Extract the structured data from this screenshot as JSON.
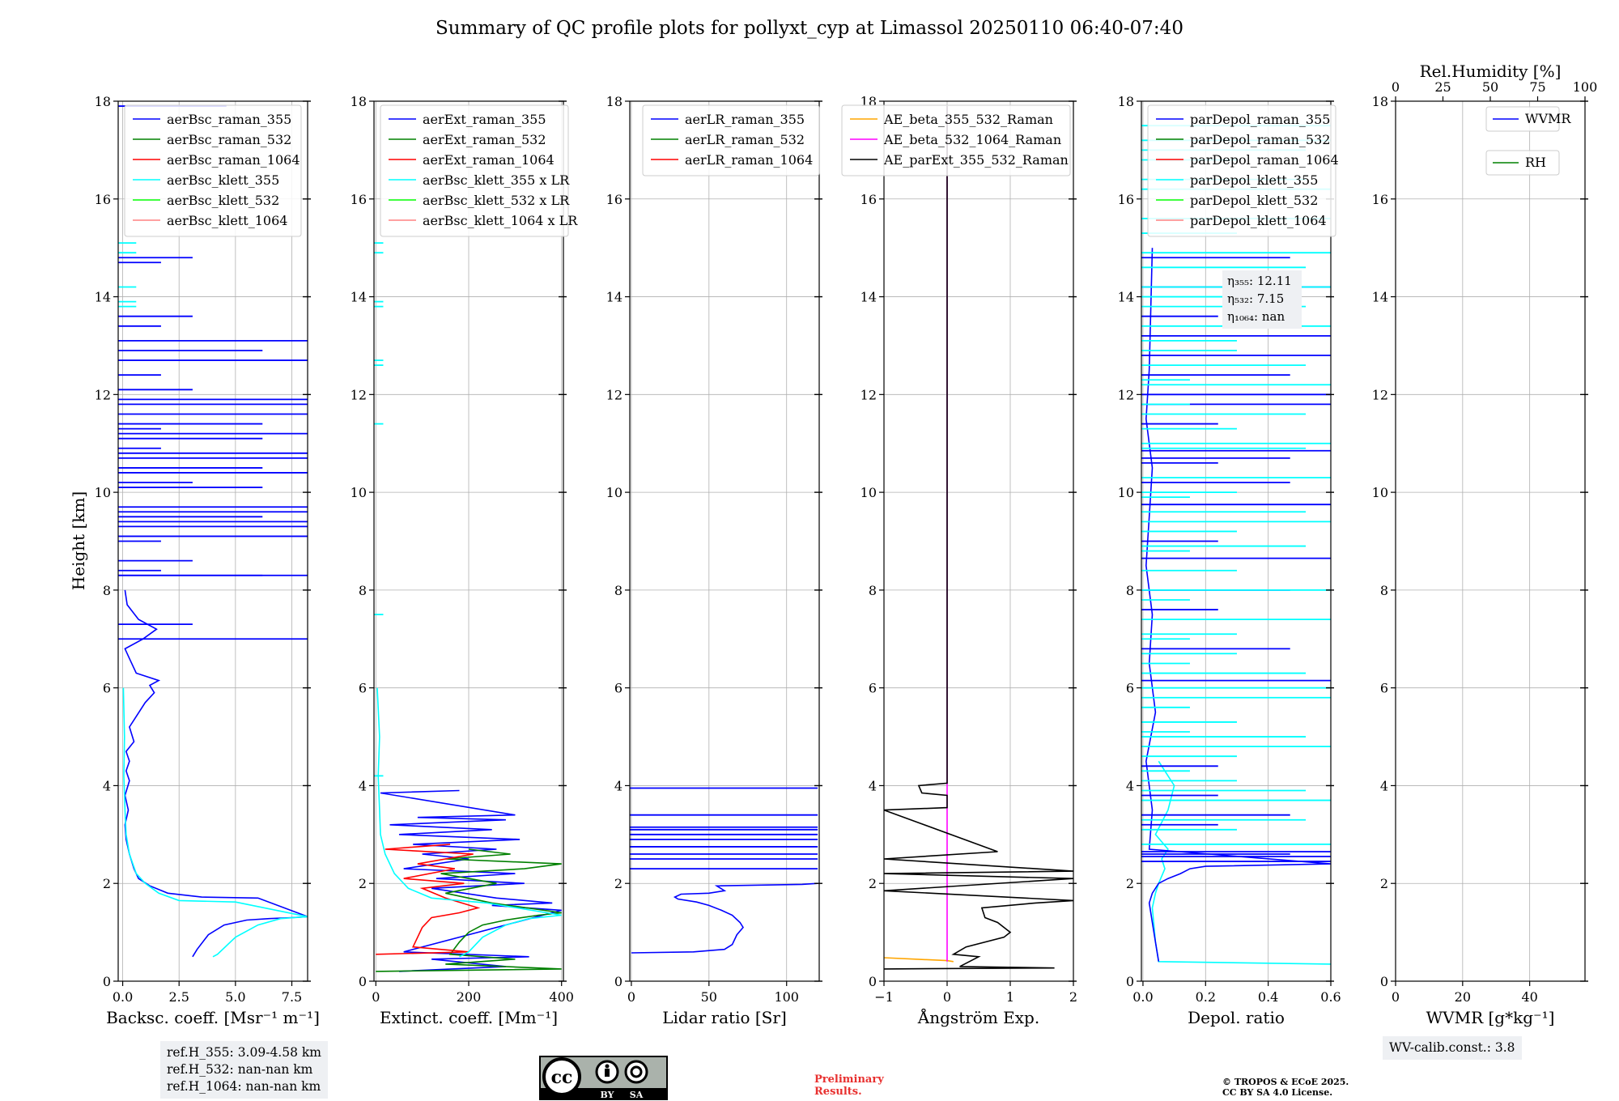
{
  "title": "Summary of QC profile plots for pollyxt_cyp at Limassol 20250110 06:40-07:40",
  "y_axis_label": "Height [km]",
  "colors": {
    "raman_355": "#0000ff",
    "raman_532": "#008000",
    "raman_1064": "#ff0000",
    "klett_355": "#00ffff",
    "klett_532": "#00ff00",
    "klett_1064": "#ff8080",
    "ae_beta_355_532": "#ffa500",
    "ae_beta_532_1064": "#ff00ff",
    "ae_parext": "#000000",
    "grid": "#b0b0b0",
    "annot_bg": "#eef0f3",
    "prelim": "#e8302f"
  },
  "chart_data": [
    {
      "type": "line",
      "id": "bsc",
      "xlabel": "Backsc. coeff. [Msr$^{-1}$ m$^{-1}$]",
      "xlabel_text": "Backsc. coeff. [Msr⁻¹ m⁻¹]",
      "xlim": [
        -0.2,
        8.2
      ],
      "ylim": [
        0,
        18
      ],
      "xticks": [
        0,
        2.5,
        5,
        7.5
      ],
      "xtick_labels": [
        "0.0",
        "2.5",
        "5.0",
        "7.5"
      ],
      "yticks": [
        0,
        2,
        4,
        6,
        8,
        10,
        12,
        14,
        16,
        18
      ],
      "legend": [
        "aerBsc_raman_355",
        "aerBsc_raman_532",
        "aerBsc_raman_1064",
        "aerBsc_klett_355",
        "aerBsc_klett_532",
        "aerBsc_klett_1064"
      ],
      "series": [
        {
          "name": "aerBsc_raman_355",
          "color": "#0000ff",
          "x": [
            3.1,
            3.3,
            3.8,
            4.5,
            5.5,
            6.5,
            7.5,
            8.2,
            6.0,
            3.5,
            2.0,
            1.2,
            0.7,
            0.5,
            0.3,
            0.15,
            0.1,
            0.25,
            0.1,
            0.3,
            0.15,
            0.3,
            0.15,
            0.5,
            0.3,
            1.0,
            1.4,
            1.2,
            1.6,
            0.6,
            0.3,
            0.1,
            0.9,
            1.5,
            0.7,
            0.2,
            0.1
          ],
          "y": [
            0.5,
            0.65,
            0.95,
            1.15,
            1.25,
            1.28,
            1.3,
            1.32,
            1.7,
            1.72,
            1.8,
            1.95,
            2.1,
            2.3,
            2.6,
            2.9,
            3.2,
            3.5,
            3.8,
            4.1,
            4.3,
            4.5,
            4.7,
            4.9,
            5.2,
            5.7,
            5.9,
            6.05,
            6.15,
            6.3,
            6.6,
            6.8,
            7.0,
            7.2,
            7.4,
            7.7,
            8.0
          ]
        },
        {
          "name": "aerBsc_klett_355",
          "color": "#00ffff",
          "x": [
            4.0,
            4.2,
            5.0,
            6.0,
            7.0,
            8.2,
            5.0,
            2.5,
            1.6,
            1.0,
            0.6,
            0.3,
            0.15,
            0.1,
            0.05,
            0.08,
            0.03
          ],
          "y": [
            0.5,
            0.55,
            0.9,
            1.15,
            1.28,
            1.32,
            1.62,
            1.65,
            1.8,
            2.0,
            2.2,
            2.6,
            3.0,
            3.5,
            4.2,
            5.0,
            6.0
          ]
        }
      ],
      "spikes": [
        {
          "color": "#0000ff",
          "x": 8.2,
          "y": [
            7.0,
            8.3,
            9.1,
            9.3,
            9.4,
            9.6,
            9.7,
            10.4,
            10.7,
            10.8,
            11.2,
            11.6,
            11.8,
            11.9,
            12.7,
            13.1
          ]
        },
        {
          "color": "#0000ff",
          "x": 6.2,
          "y": [
            8.3,
            9.5,
            10.1,
            10.5,
            11.1,
            11.4,
            12.9
          ]
        },
        {
          "color": "#0000ff",
          "x": 3.1,
          "y": [
            7.3,
            8.6,
            10.2,
            12.1,
            13.6,
            14.8
          ]
        },
        {
          "color": "#0000ff",
          "x": 1.7,
          "y": [
            8.4,
            9.0,
            10.9,
            11.3,
            12.4,
            13.4,
            14.7
          ]
        },
        {
          "color": "#0000ff",
          "x": 4.6,
          "y": [
            17.9
          ]
        },
        {
          "color": "#00ffff",
          "x": 0.6,
          "y": [
            13.8,
            13.9,
            14.2,
            14.9,
            15.1
          ]
        }
      ]
    },
    {
      "type": "line",
      "id": "ext",
      "xlabel_text": "Extinct. coeff. [Mm⁻¹]",
      "xlim": [
        -4,
        404
      ],
      "ylim": [
        0,
        18
      ],
      "xticks": [
        0,
        200,
        400
      ],
      "xtick_labels": [
        "0",
        "200",
        "400"
      ],
      "yticks": [
        0,
        2,
        4,
        6,
        8,
        10,
        12,
        14,
        16,
        18
      ],
      "legend": [
        "aerExt_raman_355",
        "aerExt_raman_532",
        "aerExt_raman_1064",
        "aerBsc_klett_355 x LR",
        "aerBsc_klett_532 x LR",
        "aerBsc_klett_1064 x LR"
      ],
      "series": [
        {
          "name": "aerExt_raman_355",
          "color": "#0000ff",
          "x": [
            50,
            280,
            120,
            330,
            60,
            400,
            250,
            380,
            260,
            120,
            320,
            130,
            300,
            60,
            200,
            100,
            260,
            80,
            310,
            50,
            250,
            30,
            280,
            90,
            300,
            10,
            180
          ],
          "y": [
            0.2,
            0.3,
            0.45,
            0.5,
            0.6,
            1.45,
            1.55,
            1.6,
            1.7,
            1.9,
            2.0,
            2.1,
            2.2,
            2.3,
            2.5,
            2.6,
            2.7,
            2.8,
            2.9,
            3.0,
            3.1,
            3.2,
            3.3,
            3.35,
            3.4,
            3.85,
            3.9
          ]
        },
        {
          "name": "aerExt_raman_532",
          "color": "#008000",
          "x": [
            0,
            400,
            150,
            300,
            160,
            180,
            200,
            230,
            280,
            350,
            400,
            250,
            150,
            260,
            140,
            320,
            400,
            150,
            290,
            200
          ],
          "y": [
            0.2,
            0.25,
            0.35,
            0.45,
            0.55,
            0.8,
            1.0,
            1.15,
            1.25,
            1.35,
            1.4,
            1.6,
            1.8,
            2.0,
            2.2,
            2.3,
            2.4,
            2.5,
            2.6,
            2.7
          ]
        },
        {
          "name": "aerExt_raman_1064",
          "color": "#ff0000",
          "x": [
            0,
            200,
            80,
            90,
            100,
            120,
            180,
            220,
            150,
            100,
            190,
            60,
            170,
            90,
            210,
            20,
            160
          ],
          "y": [
            0.55,
            0.6,
            0.7,
            0.9,
            1.1,
            1.3,
            1.4,
            1.5,
            1.7,
            1.9,
            2.0,
            2.1,
            2.3,
            2.4,
            2.6,
            2.7,
            2.8
          ]
        },
        {
          "name": "aerBsc_klett_355 x LR",
          "color": "#00ffff",
          "x": [
            180,
            200,
            230,
            280,
            330,
            400,
            240,
            120,
            70,
            40,
            20,
            10,
            8,
            5,
            8,
            3
          ],
          "y": [
            0.5,
            0.6,
            0.9,
            1.15,
            1.28,
            1.35,
            1.6,
            1.7,
            1.9,
            2.2,
            2.6,
            3.0,
            3.5,
            4.2,
            5.0,
            6.0
          ]
        }
      ],
      "spikes": [
        {
          "color": "#00ffff",
          "x": 16,
          "y": [
            12.6,
            12.7,
            13.8,
            13.9,
            14.9,
            15.1,
            11.4,
            7.5,
            4.2
          ]
        }
      ]
    },
    {
      "type": "line",
      "id": "lr",
      "xlabel_text": "Lidar ratio [Sr]",
      "xlim": [
        -1,
        121
      ],
      "ylim": [
        0,
        18
      ],
      "xticks": [
        0,
        50,
        100
      ],
      "xtick_labels": [
        "0",
        "50",
        "100"
      ],
      "yticks": [
        0,
        2,
        4,
        6,
        8,
        10,
        12,
        14,
        16,
        18
      ],
      "legend": [
        "aerLR_raman_355",
        "aerLR_raman_532",
        "aerLR_raman_1064"
      ],
      "series": [
        {
          "name": "aerLR_raman_355",
          "color": "#0000ff",
          "x": [
            0,
            40,
            60,
            65,
            68,
            72,
            70,
            65,
            58,
            50,
            42,
            30,
            28,
            32,
            50,
            60,
            55,
            110,
            120
          ],
          "y": [
            0.58,
            0.6,
            0.65,
            0.75,
            0.95,
            1.1,
            1.2,
            1.35,
            1.45,
            1.55,
            1.62,
            1.68,
            1.72,
            1.78,
            1.8,
            1.85,
            1.95,
            1.98,
            2.0
          ]
        }
      ],
      "spikes": [
        {
          "color": "#0000ff",
          "x": 120,
          "y": [
            2.3,
            2.5,
            2.6,
            2.75,
            2.9,
            3.0,
            3.1,
            3.15,
            3.4,
            3.95
          ]
        }
      ]
    },
    {
      "type": "line",
      "id": "ae",
      "xlabel_text": "Ångström Exp.",
      "xlim": [
        -1,
        2
      ],
      "ylim": [
        0,
        18
      ],
      "xticks": [
        -1,
        0,
        1,
        2
      ],
      "xtick_labels": [
        "−1",
        "0",
        "1",
        "2"
      ],
      "yticks": [
        0,
        2,
        4,
        6,
        8,
        10,
        12,
        14,
        16,
        18
      ],
      "legend": [
        "AE_beta_355_532_Raman",
        "AE_beta_532_1064_Raman",
        "AE_parExt_355_532_Raman"
      ],
      "series": [
        {
          "name": "AE_beta_355_532_Raman",
          "color": "#ffa500",
          "x": [
            -1,
            -0.5,
            0,
            0.1
          ],
          "y": [
            0.48,
            0.45,
            0.42,
            0.4
          ]
        },
        {
          "name": "AE_beta_532_1064_Raman",
          "color": "#ff00ff",
          "x": [
            0,
            0
          ],
          "y": [
            0.4,
            17.9
          ]
        },
        {
          "name": "AE_parExt_355_532_Raman",
          "color": "#000000",
          "x": [
            -1,
            1.7,
            0.2,
            0.5,
            0.1,
            0.3,
            0.9,
            1.0,
            0.8,
            0.6,
            0.55,
            1.4,
            2.0,
            -1,
            2.0,
            -1,
            2.0,
            -1,
            0.8,
            -1,
            0,
            0,
            -0.4,
            -0.45,
            0,
            0,
            0
          ],
          "y": [
            0.25,
            0.27,
            0.3,
            0.5,
            0.55,
            0.7,
            0.9,
            1.0,
            1.2,
            1.3,
            1.5,
            1.6,
            1.65,
            1.85,
            2.1,
            2.2,
            2.25,
            2.5,
            2.65,
            3.5,
            3.55,
            3.8,
            3.85,
            4.0,
            4.05,
            10,
            17.9
          ]
        }
      ]
    },
    {
      "type": "line",
      "id": "depol",
      "xlabel_text": "Depol. ratio",
      "xlim": [
        -0.005,
        0.6
      ],
      "ylim": [
        0,
        18
      ],
      "xticks": [
        0,
        0.2,
        0.4,
        0.6
      ],
      "xtick_labels": [
        "0.0",
        "0.2",
        "0.4",
        "0.6"
      ],
      "yticks": [
        0,
        2,
        4,
        6,
        8,
        10,
        12,
        14,
        16,
        18
      ],
      "legend": [
        "parDepol_raman_355",
        "parDepol_raman_532",
        "parDepol_raman_1064",
        "parDepol_klett_355",
        "parDepol_klett_532",
        "parDepol_klett_1064"
      ],
      "annotation": [
        "η₃₅₅: 12.11",
        "η₅₃₂: 7.15",
        "η₁₀₆₄: nan"
      ],
      "series": [
        {
          "name": "parDepol_klett_355",
          "color": "#00ffff",
          "x": [
            0.6,
            0.05,
            0.04,
            0.03,
            0.04,
            0.05,
            0.07,
            0.06,
            0.08,
            0.04,
            0.08,
            0.1,
            0.05
          ],
          "y": [
            0.35,
            0.4,
            0.8,
            1.5,
            1.8,
            2.0,
            2.3,
            2.5,
            2.7,
            3.0,
            3.5,
            4.0,
            4.5
          ]
        },
        {
          "name": "parDepol_raman_355",
          "color": "#0000ff",
          "x": [
            0.05,
            0.04,
            0.03,
            0.02,
            0.03,
            0.05,
            0.08,
            0.12,
            0.15,
            0.2,
            0.6,
            0.02,
            0.03,
            0.01,
            0.04,
            0.02,
            0.03,
            0.01,
            0.02,
            0.03,
            0.01,
            0.02,
            0.03
          ],
          "y": [
            0.4,
            0.8,
            1.2,
            1.6,
            1.8,
            2.0,
            2.1,
            2.2,
            2.3,
            2.35,
            2.4,
            2.7,
            3.5,
            4.5,
            5.5,
            6.5,
            7.5,
            8.5,
            9.5,
            10.5,
            11.5,
            12.5,
            15.0
          ]
        }
      ],
      "spikes": [
        {
          "color": "#0000ff",
          "x": 0.6,
          "y": [
            2.45,
            2.55,
            2.65,
            6.15,
            8.65,
            9.75,
            10.85,
            11.8,
            12.0,
            12.8,
            13.2,
            14.2
          ]
        },
        {
          "color": "#0000ff",
          "x": 0.47,
          "y": [
            2.6,
            3.4,
            6.8,
            8.0,
            10.2,
            10.7,
            12.4,
            14.8
          ]
        },
        {
          "color": "#0000ff",
          "x": 0.24,
          "y": [
            3.2,
            3.8,
            4.4,
            7.6,
            9.0,
            10.6,
            11.4,
            13.6
          ]
        },
        {
          "color": "#00ffff",
          "x": 0.6,
          "y": [
            2.8,
            3.7,
            4.8,
            5.8,
            6.0,
            7.4,
            8.0,
            9.4,
            10.3,
            11.0,
            12.2,
            13.4,
            14.2,
            14.9,
            15.6,
            16.2,
            17.2,
            17.5
          ]
        },
        {
          "color": "#00ffff",
          "x": 0.52,
          "y": [
            3.3,
            3.9,
            5.0,
            6.3,
            8.9,
            9.6,
            10.9,
            11.6,
            12.6,
            13.8,
            14.6,
            16.4,
            17.0
          ]
        },
        {
          "color": "#00ffff",
          "x": 0.3,
          "y": [
            3.1,
            4.1,
            4.6,
            5.3,
            6.7,
            7.1,
            8.4,
            9.2,
            10.0,
            11.3,
            12.9,
            13.1,
            14.0,
            15.3,
            16.8
          ]
        },
        {
          "color": "#00ffff",
          "x": 0.15,
          "y": [
            4.3,
            5.1,
            5.6,
            6.5,
            7.0,
            7.8,
            8.8,
            9.9,
            11.8,
            12.3
          ]
        }
      ]
    },
    {
      "type": "line",
      "id": "wv",
      "xlabel_text": "WVMR [g*kg⁻¹]",
      "xlim": [
        0,
        56.5
      ],
      "ylim": [
        0,
        18
      ],
      "xticks": [
        0,
        20,
        40
      ],
      "xtick_labels": [
        "0",
        "20",
        "40"
      ],
      "yticks": [
        0,
        2,
        4,
        6,
        8,
        10,
        12,
        14,
        16,
        18
      ],
      "top_axis": {
        "label": "Rel.Humidity [%]",
        "lim": [
          0,
          100
        ],
        "ticks": [
          0,
          25,
          50,
          75,
          100
        ],
        "tick_labels": [
          "0",
          "25",
          "50",
          "75",
          "100"
        ]
      },
      "legend": [
        "WVMR",
        "RH"
      ],
      "series": []
    }
  ],
  "ref_heights": [
    "ref.H_355: 3.09-4.58 km",
    "ref.H_532: nan-nan km",
    "ref.H_1064: nan-nan km"
  ],
  "wv_calib": "WV-calib.const.: 3.8",
  "preliminary": [
    "Preliminary",
    "Results."
  ],
  "copyright": [
    "© TROPOS & ECoE 2025.",
    "CC BY SA 4.0 License."
  ],
  "license_logo": {
    "cc": "cc",
    "by": "BY",
    "sa": "SA"
  }
}
